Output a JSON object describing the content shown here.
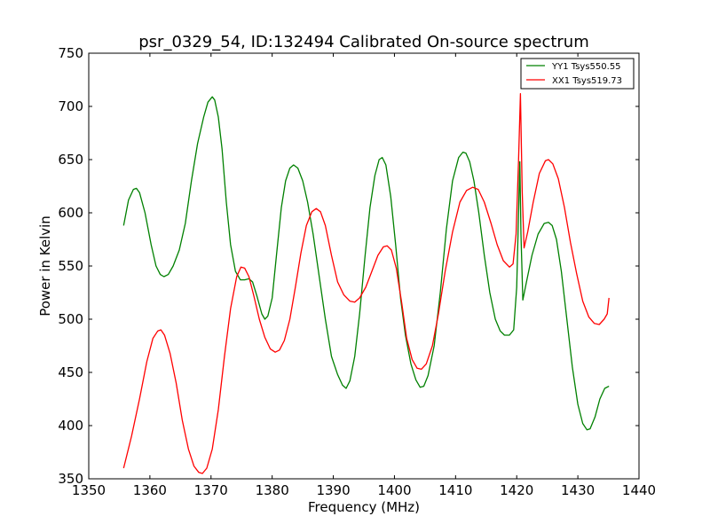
{
  "chart_data": {
    "type": "line",
    "title": "psr_0329_54, ID:132494 Calibrated On-source spectrum",
    "xlabel": "Frequency (MHz)",
    "ylabel": "Power in Kelvin",
    "xlim": [
      1350,
      1440
    ],
    "ylim": [
      350,
      750
    ],
    "xticks": [
      1350,
      1360,
      1370,
      1380,
      1390,
      1400,
      1410,
      1420,
      1430,
      1440
    ],
    "yticks": [
      350,
      400,
      450,
      500,
      550,
      600,
      650,
      700,
      750
    ],
    "grid": false,
    "legend_position": "top-right",
    "series": [
      {
        "name": "YY1 Tsys550.55",
        "color": "#008000",
        "points": [
          [
            1355.7,
            588
          ],
          [
            1356.5,
            612
          ],
          [
            1357.3,
            622
          ],
          [
            1357.8,
            623
          ],
          [
            1358.3,
            619
          ],
          [
            1359.2,
            600
          ],
          [
            1360.2,
            570
          ],
          [
            1361.0,
            550
          ],
          [
            1361.7,
            542
          ],
          [
            1362.3,
            540
          ],
          [
            1363.0,
            542
          ],
          [
            1363.8,
            550
          ],
          [
            1364.8,
            565
          ],
          [
            1365.8,
            590
          ],
          [
            1366.8,
            630
          ],
          [
            1367.8,
            665
          ],
          [
            1368.8,
            690
          ],
          [
            1369.5,
            704
          ],
          [
            1370.2,
            709
          ],
          [
            1370.6,
            706
          ],
          [
            1371.2,
            690
          ],
          [
            1371.8,
            660
          ],
          [
            1372.5,
            610
          ],
          [
            1373.2,
            570
          ],
          [
            1374.0,
            545
          ],
          [
            1374.8,
            537
          ],
          [
            1375.5,
            537
          ],
          [
            1376.2,
            538
          ],
          [
            1376.8,
            535
          ],
          [
            1377.5,
            522
          ],
          [
            1378.3,
            505
          ],
          [
            1378.8,
            500
          ],
          [
            1379.3,
            503
          ],
          [
            1380.0,
            520
          ],
          [
            1380.7,
            560
          ],
          [
            1381.5,
            605
          ],
          [
            1382.2,
            630
          ],
          [
            1382.9,
            642
          ],
          [
            1383.5,
            645
          ],
          [
            1384.2,
            642
          ],
          [
            1385.0,
            630
          ],
          [
            1385.8,
            610
          ],
          [
            1386.7,
            580
          ],
          [
            1387.7,
            540
          ],
          [
            1388.7,
            500
          ],
          [
            1389.7,
            465
          ],
          [
            1390.7,
            448
          ],
          [
            1391.5,
            438
          ],
          [
            1392.1,
            435
          ],
          [
            1392.7,
            442
          ],
          [
            1393.5,
            465
          ],
          [
            1394.3,
            505
          ],
          [
            1395.2,
            560
          ],
          [
            1396.0,
            605
          ],
          [
            1396.8,
            635
          ],
          [
            1397.5,
            650
          ],
          [
            1398.0,
            652
          ],
          [
            1398.6,
            645
          ],
          [
            1399.4,
            615
          ],
          [
            1400.2,
            570
          ],
          [
            1401.0,
            520
          ],
          [
            1401.8,
            485
          ],
          [
            1402.7,
            458
          ],
          [
            1403.5,
            443
          ],
          [
            1404.2,
            436
          ],
          [
            1404.8,
            437
          ],
          [
            1405.5,
            447
          ],
          [
            1406.5,
            475
          ],
          [
            1407.5,
            525
          ],
          [
            1408.5,
            585
          ],
          [
            1409.5,
            630
          ],
          [
            1410.5,
            652
          ],
          [
            1411.2,
            657
          ],
          [
            1411.7,
            656
          ],
          [
            1412.3,
            648
          ],
          [
            1413.0,
            630
          ],
          [
            1413.8,
            600
          ],
          [
            1414.7,
            560
          ],
          [
            1415.6,
            525
          ],
          [
            1416.5,
            500
          ],
          [
            1417.3,
            489
          ],
          [
            1418.0,
            485
          ],
          [
            1418.8,
            485
          ],
          [
            1419.5,
            490
          ],
          [
            1420.0,
            530
          ],
          [
            1420.3,
            600
          ],
          [
            1420.5,
            648
          ],
          [
            1420.7,
            580
          ],
          [
            1421.0,
            518
          ],
          [
            1421.6,
            535
          ],
          [
            1422.5,
            560
          ],
          [
            1423.5,
            580
          ],
          [
            1424.5,
            590
          ],
          [
            1425.2,
            591
          ],
          [
            1425.8,
            588
          ],
          [
            1426.5,
            575
          ],
          [
            1427.3,
            545
          ],
          [
            1428.2,
            500
          ],
          [
            1429.1,
            455
          ],
          [
            1430.0,
            420
          ],
          [
            1430.8,
            402
          ],
          [
            1431.5,
            396
          ],
          [
            1432.0,
            397
          ],
          [
            1432.8,
            408
          ],
          [
            1433.6,
            425
          ],
          [
            1434.4,
            435
          ],
          [
            1435.1,
            437
          ]
        ]
      },
      {
        "name": "XX1 Tsys519.73",
        "color": "#ff0000",
        "points": [
          [
            1355.7,
            360
          ],
          [
            1357.0,
            390
          ],
          [
            1358.3,
            425
          ],
          [
            1359.5,
            460
          ],
          [
            1360.5,
            482
          ],
          [
            1361.3,
            489
          ],
          [
            1361.8,
            490
          ],
          [
            1362.4,
            485
          ],
          [
            1363.3,
            468
          ],
          [
            1364.3,
            440
          ],
          [
            1365.3,
            405
          ],
          [
            1366.3,
            378
          ],
          [
            1367.2,
            362
          ],
          [
            1368.0,
            356
          ],
          [
            1368.6,
            355
          ],
          [
            1369.3,
            360
          ],
          [
            1370.2,
            378
          ],
          [
            1371.2,
            415
          ],
          [
            1372.2,
            465
          ],
          [
            1373.2,
            510
          ],
          [
            1374.2,
            540
          ],
          [
            1374.9,
            549
          ],
          [
            1375.5,
            548
          ],
          [
            1376.2,
            540
          ],
          [
            1377.0,
            522
          ],
          [
            1377.9,
            500
          ],
          [
            1378.8,
            483
          ],
          [
            1379.7,
            472
          ],
          [
            1380.5,
            469
          ],
          [
            1381.2,
            471
          ],
          [
            1382.0,
            480
          ],
          [
            1382.9,
            500
          ],
          [
            1383.8,
            530
          ],
          [
            1384.7,
            562
          ],
          [
            1385.6,
            588
          ],
          [
            1386.5,
            601
          ],
          [
            1387.2,
            604
          ],
          [
            1387.9,
            601
          ],
          [
            1388.7,
            588
          ],
          [
            1389.7,
            560
          ],
          [
            1390.7,
            535
          ],
          [
            1391.7,
            523
          ],
          [
            1392.7,
            517
          ],
          [
            1393.5,
            516
          ],
          [
            1394.3,
            520
          ],
          [
            1395.3,
            530
          ],
          [
            1396.3,
            545
          ],
          [
            1397.3,
            560
          ],
          [
            1398.2,
            568
          ],
          [
            1398.8,
            569
          ],
          [
            1399.5,
            565
          ],
          [
            1400.3,
            548
          ],
          [
            1401.2,
            515
          ],
          [
            1402.0,
            482
          ],
          [
            1402.9,
            462
          ],
          [
            1403.7,
            454
          ],
          [
            1404.4,
            453
          ],
          [
            1405.2,
            458
          ],
          [
            1406.2,
            475
          ],
          [
            1407.2,
            505
          ],
          [
            1408.3,
            545
          ],
          [
            1409.5,
            582
          ],
          [
            1410.7,
            610
          ],
          [
            1411.8,
            621
          ],
          [
            1412.8,
            624
          ],
          [
            1413.7,
            622
          ],
          [
            1414.7,
            610
          ],
          [
            1415.8,
            590
          ],
          [
            1416.8,
            570
          ],
          [
            1417.8,
            555
          ],
          [
            1418.8,
            549
          ],
          [
            1419.4,
            552
          ],
          [
            1419.9,
            580
          ],
          [
            1420.3,
            650
          ],
          [
            1420.6,
            712
          ],
          [
            1420.9,
            620
          ],
          [
            1421.2,
            567
          ],
          [
            1421.8,
            582
          ],
          [
            1422.7,
            610
          ],
          [
            1423.7,
            637
          ],
          [
            1424.7,
            649
          ],
          [
            1425.2,
            650
          ],
          [
            1425.9,
            646
          ],
          [
            1426.8,
            632
          ],
          [
            1427.8,
            605
          ],
          [
            1428.8,
            572
          ],
          [
            1429.8,
            543
          ],
          [
            1430.8,
            517
          ],
          [
            1431.8,
            502
          ],
          [
            1432.7,
            496
          ],
          [
            1433.5,
            495
          ],
          [
            1434.3,
            500
          ],
          [
            1434.8,
            505
          ],
          [
            1435.1,
            520
          ]
        ]
      }
    ]
  }
}
